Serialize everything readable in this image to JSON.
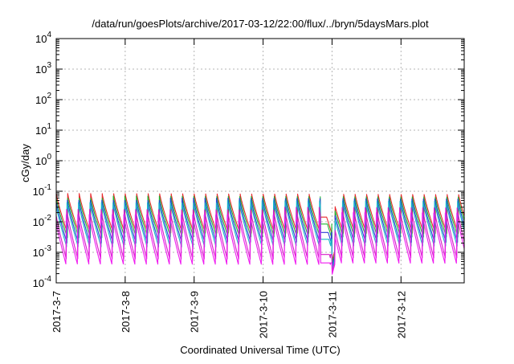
{
  "chart_data": {
    "type": "line",
    "title": "/data/run/goesPlots/archive/2017-03-12/22:00/flux/../bryn/5daysMars.plot",
    "xlabel": "Coordinated Universal Time (UTC)",
    "ylabel": "cGy/day",
    "x_range": [
      "2017-03-07T00:00",
      "2017-03-12T22:00"
    ],
    "ylim": [
      0.0001,
      10000
    ],
    "yscale": "log",
    "grid": true,
    "x_ticks": [
      "2017-3-7",
      "2017-3-8",
      "2017-3-9",
      "2017-3-10",
      "2017-3-11",
      "2017-3-12"
    ],
    "y_ticks": [
      {
        "value": 0.0001,
        "base": "10",
        "exp": "-4"
      },
      {
        "value": 0.001,
        "base": "10",
        "exp": "-3"
      },
      {
        "value": 0.01,
        "base": "10",
        "exp": "-2"
      },
      {
        "value": 0.1,
        "base": "10",
        "exp": "-1"
      },
      {
        "value": 1,
        "base": "10",
        "exp": "0"
      },
      {
        "value": 10,
        "base": "10",
        "exp": "1"
      },
      {
        "value": 100,
        "base": "10",
        "exp": "2"
      },
      {
        "value": 1000,
        "base": "10",
        "exp": "3"
      },
      {
        "value": 10000,
        "base": "10",
        "exp": "4"
      }
    ],
    "cycles_per_day": 6,
    "dropout": {
      "start": "2017-03-11T00:00",
      "low": 0.00015
    },
    "series": [
      {
        "color": "#e8282c",
        "peak": 0.085,
        "trough": 0.004
      },
      {
        "color": "#1dbb34",
        "peak": 0.07,
        "trough": 0.003
      },
      {
        "color": "#2b3fd6",
        "peak": 0.06,
        "trough": 0.002
      },
      {
        "color": "#17b6c9",
        "peak": 0.05,
        "trough": 0.0015
      },
      {
        "color": "#d61ec8",
        "peak": 0.03,
        "trough": 0.0006
      },
      {
        "color": "#f01cf0",
        "peak": 0.02,
        "trough": 0.0004
      }
    ]
  }
}
